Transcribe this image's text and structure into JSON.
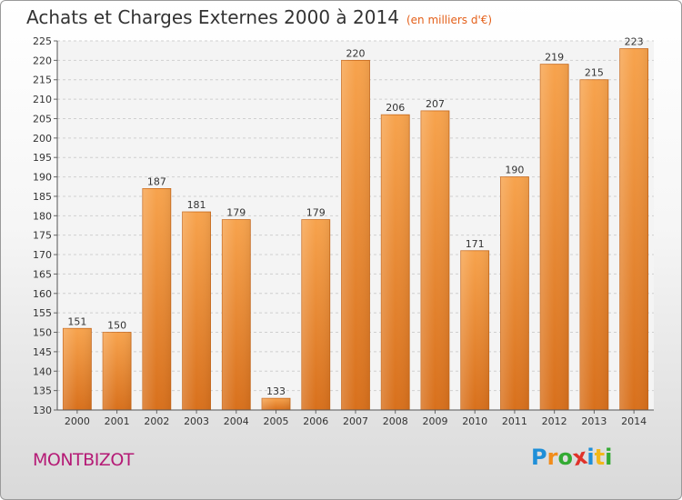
{
  "header": {
    "title": "Achats et Charges Externes 2000 à 2014",
    "subtitle": "(en milliers d'€)"
  },
  "footer": {
    "commune": "MONTBIZOT",
    "logo_letters": [
      {
        "ch": "P",
        "color": "#1f8fd8"
      },
      {
        "ch": "r",
        "color": "#f28c1a"
      },
      {
        "ch": "o",
        "color": "#33aa33"
      },
      {
        "ch": "x",
        "color": "#e0322a"
      },
      {
        "ch": "i",
        "color": "#1f8fd8"
      },
      {
        "ch": "t",
        "color": "#f2b81a"
      },
      {
        "ch": "i",
        "color": "#33aa33"
      }
    ]
  },
  "chart_data": {
    "type": "bar",
    "title": "Achats et Charges Externes 2000 à 2014",
    "subtitle": "(en milliers d'€)",
    "categories": [
      "2000",
      "2001",
      "2002",
      "2003",
      "2004",
      "2005",
      "2006",
      "2007",
      "2008",
      "2009",
      "2010",
      "2011",
      "2012",
      "2013",
      "2014"
    ],
    "values": [
      151,
      150,
      187,
      181,
      179,
      133,
      179,
      220,
      206,
      207,
      171,
      190,
      219,
      215,
      223
    ],
    "ylim": [
      130,
      225
    ],
    "yticks": [
      130,
      135,
      140,
      145,
      150,
      155,
      160,
      165,
      170,
      175,
      180,
      185,
      190,
      195,
      200,
      205,
      210,
      215,
      220,
      225
    ],
    "grid": true,
    "bar_color": "#f0933a",
    "xlabel": "",
    "ylabel": ""
  }
}
